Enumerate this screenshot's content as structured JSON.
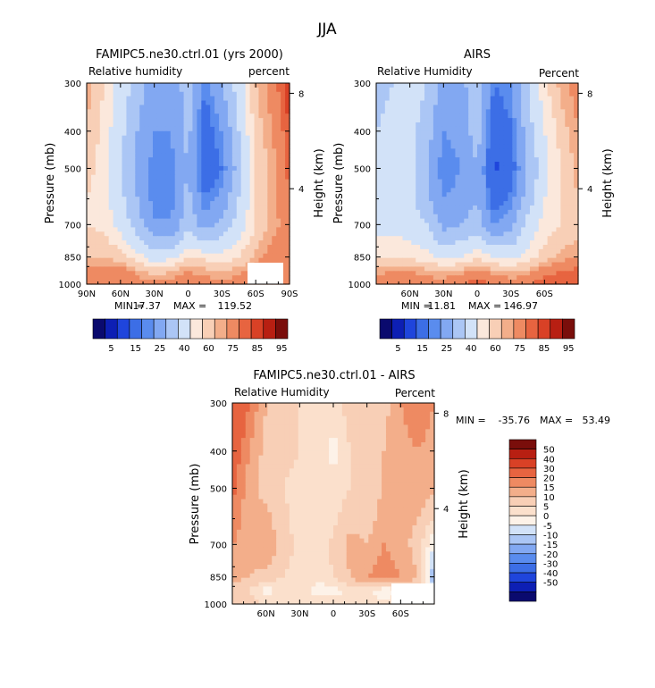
{
  "title": "JJA",
  "colors": {
    "rh": [
      "#0a0a6e",
      "#0d1fb4",
      "#1f45dc",
      "#3c6ee6",
      "#5a8cee",
      "#82a8f2",
      "#abc6f5",
      "#d2e2f8",
      "#fbe8dc",
      "#f8cfb6",
      "#f3ae8a",
      "#ee8a62",
      "#e76440",
      "#d94126",
      "#b81f12",
      "#7a0e0b"
    ],
    "diff": [
      "#0a0a6e",
      "#0d1fb4",
      "#1f45dc",
      "#3c6ee6",
      "#5a8cee",
      "#82a8f2",
      "#abc6f5",
      "#d2e2f8",
      "#fdf2e8",
      "#fbe0cc",
      "#f8cfb6",
      "#f3ae8a",
      "#ee8a62",
      "#e76440",
      "#d94126",
      "#b81f12",
      "#7a0e0b"
    ]
  },
  "chart_data": [
    {
      "type": "heatmap",
      "title": "FAMIPC5.ne30.ctrl.01 (yrs 2000)",
      "left_label": "Relative humidity",
      "right_label": "percent",
      "ylabel": "Pressure (mb)",
      "y2label": "Height (km)",
      "x_ticks": [
        "90N",
        "60N",
        "30N",
        "0",
        "30S",
        "60S",
        "90S"
      ],
      "x_range": [
        90,
        -90
      ],
      "y_ticks": [
        "300",
        "400",
        "500",
        "700",
        "850",
        "1000"
      ],
      "y_range": [
        300,
        1000
      ],
      "y_scale": "log",
      "y2_ticks": [
        "8",
        "4"
      ],
      "stats": {
        "min_label": "MIN =",
        "min": "17.37",
        "max_label": "MAX =",
        "max": "119.52"
      },
      "colorbar_labels": [
        "5",
        "15",
        "25",
        "40",
        "60",
        "75",
        "85",
        "95"
      ],
      "x_lat": [
        90,
        75,
        60,
        45,
        30,
        15,
        0,
        -15,
        -30,
        -45,
        -60,
        -75,
        -90
      ],
      "levels": [
        300,
        400,
        500,
        600,
        700,
        850,
        925,
        1000
      ],
      "values": [
        [
          80,
          72,
          62,
          50,
          38,
          38,
          50,
          30,
          45,
          60,
          78,
          85,
          95
        ],
        [
          78,
          70,
          58,
          45,
          35,
          35,
          48,
          25,
          35,
          55,
          75,
          82,
          92
        ],
        [
          75,
          68,
          55,
          42,
          32,
          32,
          46,
          22,
          30,
          50,
          72,
          80,
          90
        ],
        [
          72,
          68,
          58,
          45,
          32,
          32,
          48,
          30,
          38,
          55,
          72,
          80,
          88
        ],
        [
          72,
          70,
          62,
          50,
          36,
          36,
          52,
          40,
          48,
          60,
          72,
          80,
          85
        ],
        [
          78,
          78,
          75,
          68,
          60,
          62,
          72,
          70,
          68,
          72,
          80,
          85,
          88
        ],
        [
          85,
          85,
          85,
          80,
          75,
          78,
          82,
          80,
          78,
          80,
          85,
          85,
          88
        ],
        [
          88,
          88,
          88,
          85,
          85,
          85,
          85,
          85,
          85,
          85,
          88,
          88,
          88
        ]
      ]
    },
    {
      "type": "heatmap",
      "title": "AIRS",
      "left_label": "Relative Humidity",
      "right_label": "Percent",
      "ylabel": "Pressure (mb)",
      "y2label": "Height (km)",
      "x_ticks": [
        "60N",
        "30N",
        "0",
        "30S",
        "60S"
      ],
      "x_range": [
        90,
        -90
      ],
      "y_ticks": [
        "300",
        "400",
        "500",
        "700",
        "850",
        "1000"
      ],
      "y_range": [
        300,
        1000
      ],
      "y_scale": "log",
      "y2_ticks": [
        "8",
        "4"
      ],
      "stats": {
        "min_label": "MIN =",
        "min": "11.81",
        "max_label": "MAX =",
        "max": "146.97"
      },
      "colorbar_labels": [
        "5",
        "15",
        "25",
        "40",
        "60",
        "75",
        "85",
        "95"
      ],
      "x_lat": [
        90,
        75,
        60,
        45,
        30,
        15,
        0,
        -15,
        -30,
        -45,
        -60,
        -75,
        -90
      ],
      "levels": [
        300,
        400,
        500,
        600,
        700,
        850,
        925,
        1000
      ],
      "values": [
        [
          50,
          55,
          60,
          55,
          40,
          40,
          55,
          30,
          35,
          55,
          70,
          80,
          85
        ],
        [
          55,
          60,
          58,
          50,
          35,
          38,
          50,
          22,
          28,
          50,
          65,
          75,
          82
        ],
        [
          58,
          62,
          58,
          45,
          30,
          35,
          45,
          18,
          25,
          45,
          62,
          72,
          80
        ],
        [
          60,
          62,
          58,
          48,
          35,
          38,
          45,
          25,
          32,
          50,
          65,
          72,
          78
        ],
        [
          62,
          62,
          60,
          55,
          42,
          45,
          50,
          35,
          42,
          58,
          68,
          72,
          75
        ],
        [
          72,
          72,
          70,
          68,
          62,
          65,
          70,
          65,
          62,
          68,
          75,
          80,
          82
        ],
        [
          80,
          82,
          82,
          80,
          78,
          80,
          85,
          80,
          78,
          80,
          85,
          88,
          90
        ],
        [
          85,
          88,
          88,
          85,
          85,
          88,
          90,
          88,
          85,
          88,
          92,
          92,
          92
        ]
      ]
    },
    {
      "type": "heatmap",
      "title": "FAMIPC5.ne30.ctrl.01 - AIRS",
      "left_label": "Relative Humidity",
      "right_label": "Percent",
      "ylabel": "Pressure (mb)",
      "y2label": "Height (km)",
      "x_ticks": [
        "60N",
        "30N",
        "0",
        "30S",
        "60S"
      ],
      "x_range": [
        90,
        -90
      ],
      "y_ticks": [
        "300",
        "400",
        "500",
        "700",
        "850",
        "1000"
      ],
      "y_range": [
        300,
        1000
      ],
      "y_scale": "log",
      "y2_ticks": [
        "8",
        "4"
      ],
      "stats": {
        "min_label": "MIN =",
        "min": "-35.76",
        "max_label": "MAX =",
        "max": "53.49"
      },
      "colorbar_labels": [
        "50",
        "40",
        "30",
        "20",
        "15",
        "10",
        "5",
        "0",
        "-5",
        "-10",
        "-15",
        "-20",
        "-30",
        "-40",
        "-50"
      ],
      "x_lat": [
        90,
        75,
        60,
        45,
        30,
        15,
        0,
        -15,
        -30,
        -45,
        -60,
        -75,
        -90
      ],
      "levels": [
        300,
        400,
        500,
        600,
        700,
        850,
        925,
        1000
      ],
      "values": [
        [
          30,
          20,
          10,
          8,
          5,
          5,
          2,
          8,
          10,
          8,
          15,
          20,
          15
        ],
        [
          25,
          15,
          8,
          6,
          5,
          4,
          -2,
          5,
          8,
          10,
          12,
          15,
          12
        ],
        [
          22,
          12,
          8,
          5,
          4,
          3,
          2,
          5,
          8,
          10,
          15,
          15,
          10
        ],
        [
          18,
          12,
          12,
          6,
          3,
          2,
          4,
          8,
          8,
          12,
          12,
          10,
          5
        ],
        [
          15,
          12,
          15,
          8,
          3,
          3,
          6,
          12,
          10,
          15,
          12,
          8,
          -5
        ],
        [
          12,
          10,
          8,
          5,
          3,
          2,
          5,
          10,
          15,
          18,
          15,
          10,
          -15
        ],
        [
          8,
          5,
          -3,
          2,
          3,
          -3,
          -3,
          2,
          3,
          -5,
          0,
          5,
          -10
        ],
        [
          5,
          8,
          5,
          5,
          3,
          5,
          3,
          3,
          3,
          3,
          5,
          8,
          5
        ]
      ]
    }
  ]
}
